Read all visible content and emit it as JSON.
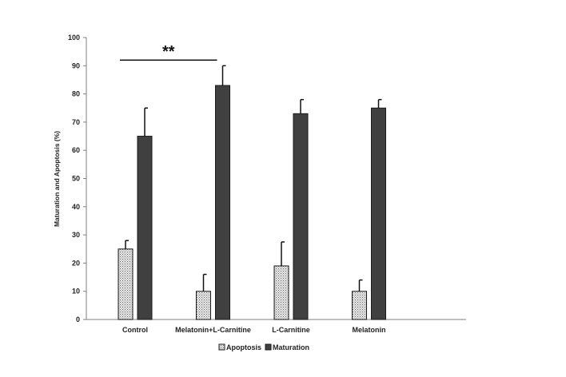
{
  "chart_data": {
    "type": "bar",
    "categories": [
      "Control",
      "Melatonin+L-Carnitine",
      "L-Carnitine",
      "Melatonin"
    ],
    "series": [
      {
        "name": "Apoptosis",
        "values": [
          25,
          10,
          19,
          10
        ],
        "errors": [
          3,
          6,
          8.5,
          4
        ],
        "color": "#d9d9d9",
        "pattern": "dotted"
      },
      {
        "name": "Maturation",
        "values": [
          65,
          83,
          73,
          75
        ],
        "errors": [
          10,
          7,
          5,
          3
        ],
        "color": "#404040",
        "pattern": "solid"
      }
    ],
    "ylabel": "Maturation and Apoptosis (%)",
    "xlabel": "",
    "ylim": [
      0,
      100
    ],
    "yticks": [
      0,
      10,
      20,
      30,
      40,
      50,
      60,
      70,
      80,
      90,
      100
    ],
    "grid": false,
    "legend_position": "bottom",
    "annotation": {
      "text": "**",
      "from_category": "Control",
      "to_category": "Melatonin+L-Carnitine",
      "level": 92
    }
  }
}
